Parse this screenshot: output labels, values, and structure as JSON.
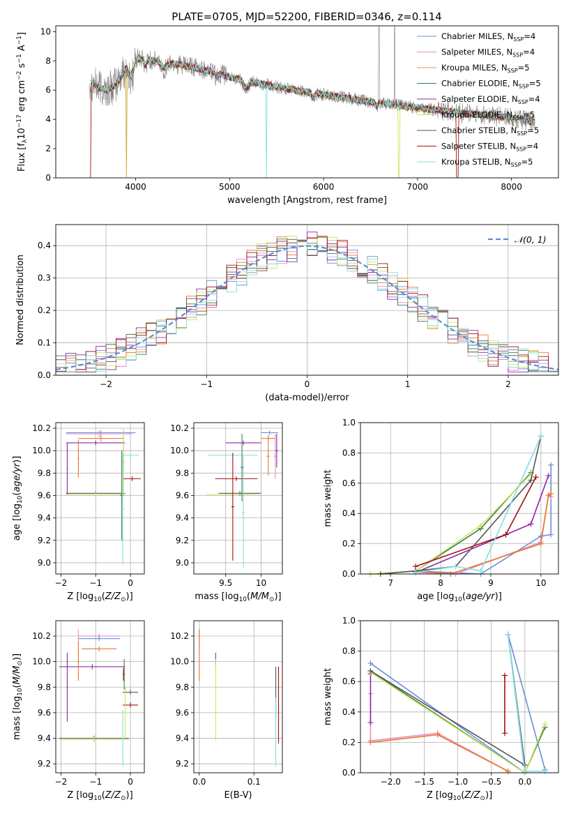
{
  "figure": {
    "title": "PLATE=0705, MJD=52200, FIBERID=0346, z=0.114"
  },
  "colors": {
    "Chabrier MILES": "#6a8fd6",
    "Salpeter MILES": "#e58fc0",
    "Kroupa MILES": "#c8a832",
    "Chabrier ELODIE": "#3f7a50",
    "Salpeter ELODIE": "#8c2aa6",
    "Kroupa ELODIE": "#c9e85a",
    "Chabrier STELIB": "#555555",
    "Salpeter STELIB": "#a01010",
    "Kroupa STELIB": "#86dede",
    "orange": "#e8762c",
    "observed": "#808080"
  },
  "chart_data": [
    {
      "type": "line",
      "id": "spectrum",
      "xlabel": "wavelength [Angstrom, rest frame]",
      "ylabel": "Flux [f_λ 10^-17 erg cm^-2 s^-1 A^-1]",
      "xlim": [
        3150,
        8500
      ],
      "ylim": [
        0,
        10.4
      ],
      "xticks": [
        4000,
        5000,
        6000,
        7000,
        8000
      ],
      "yticks": [
        0,
        2,
        4,
        6,
        8,
        10
      ],
      "grid": false,
      "legend_position": "upper-right",
      "legend": [
        {
          "name": "Chabrier MILES, N_SSP=4",
          "base": "Chabrier MILES, N",
          "sub": "SSP",
          "tail": "=4"
        },
        {
          "name": "Salpeter MILES, N_SSP=4",
          "base": "Salpeter MILES, N",
          "sub": "SSP",
          "tail": "=4"
        },
        {
          "name": "Kroupa MILES, N_SSP=5",
          "base": "Kroupa MILES, N",
          "sub": "SSP",
          "tail": "=5"
        },
        {
          "name": "Chabrier ELODIE, N_SSP=5",
          "base": "Chabrier ELODIE, N",
          "sub": "SSP",
          "tail": "=5"
        },
        {
          "name": "Salpeter ELODIE, N_SSP=4",
          "base": "Salpeter ELODIE, N",
          "sub": "SSP",
          "tail": "=4"
        },
        {
          "name": "Kroupa ELODIE, N_SSP=5",
          "base": "Kroupa ELODIE, N",
          "sub": "SSP",
          "tail": "=5"
        },
        {
          "name": "Chabrier STELIB, N_SSP=5",
          "base": "Chabrier STELIB, N",
          "sub": "SSP",
          "tail": "=5"
        },
        {
          "name": "Salpeter STELIB, N_SSP=4",
          "base": "Salpeter STELIB, N",
          "sub": "SSP",
          "tail": "=4"
        },
        {
          "name": "Kroupa STELIB, N_SSP=5",
          "base": "Kroupa STELIB, N",
          "sub": "SSP",
          "tail": "=5"
        }
      ],
      "continuum": [
        [
          3500,
          6.7
        ],
        [
          3600,
          6.2
        ],
        [
          3700,
          6.0
        ],
        [
          3800,
          6.4
        ],
        [
          3900,
          7.6
        ],
        [
          4000,
          8.2
        ],
        [
          4200,
          8.0
        ],
        [
          4500,
          7.7
        ],
        [
          4800,
          7.3
        ],
        [
          5000,
          6.9
        ],
        [
          5500,
          6.2
        ],
        [
          6000,
          5.7
        ],
        [
          6500,
          5.2
        ],
        [
          7000,
          4.8
        ],
        [
          7500,
          4.4
        ],
        [
          8000,
          4.1
        ],
        [
          8250,
          3.8
        ]
      ]
    },
    {
      "type": "histogram",
      "id": "residuals",
      "xlabel": "(data-model)/error",
      "ylabel": "Normed distribution",
      "xlim": [
        -2.5,
        2.5
      ],
      "ylim": [
        0,
        0.465
      ],
      "xticks": [
        -2,
        -1,
        0,
        1,
        2
      ],
      "yticks": [
        0.0,
        0.1,
        0.2,
        0.3,
        0.4
      ],
      "grid": true,
      "legend_position": "upper-right",
      "legend": [
        "𝒩(0, 1)"
      ],
      "bin_width": 0.1,
      "note": "step histograms for 9 fits plus Gaussian N(0,1) reference curve"
    },
    {
      "type": "errorbar",
      "id": "age_vs_Z",
      "xlabel": "Z [log10(Z/Z⊙)]",
      "ylabel": "age [log10(age/yr)]",
      "xlim": [
        -2.15,
        0.4
      ],
      "ylim": [
        8.9,
        10.25
      ],
      "xticks": [
        -2,
        -1,
        0
      ],
      "yticks": [
        9.0,
        9.2,
        9.4,
        9.6,
        9.8,
        10.0,
        10.2
      ],
      "grid": true,
      "points": [
        {
          "fit": "Chabrier MILES",
          "x": -0.85,
          "xerr": 1.0,
          "y": 10.16,
          "yerr": 0.02
        },
        {
          "fit": "Salpeter MILES",
          "x": -0.9,
          "xerr": 0.95,
          "y": 10.15,
          "yerr": 0.03
        },
        {
          "fit": "orange",
          "x": -0.85,
          "xerr": 0.65,
          "y": 10.11,
          "yerr": 0.03
        },
        {
          "fit": "Salpeter ELODIE",
          "x": -1.0,
          "xerr": 0.85,
          "y": 10.07,
          "yerr": 0.02
        },
        {
          "fit": "Chabrier STELIB",
          "x": -1.0,
          "xerr": 0.85,
          "y": 9.62,
          "yerr": 0.02
        },
        {
          "fit": "Kroupa ELODIE",
          "x": -1.0,
          "xerr": 0.85,
          "y": 9.61,
          "yerr": 0.02
        },
        {
          "fit": "Salpeter MILES",
          "x": -0.2,
          "xerr": 0.05,
          "y": 10.0,
          "yerr": 0.18
        },
        {
          "fit": "Kroupa ELODIE",
          "x": -0.2,
          "xerr": 0.05,
          "y": 9.9,
          "yerr": 0.3
        },
        {
          "fit": "Chabrier ELODIE",
          "x": -0.25,
          "xerr": 0.05,
          "y": 9.6,
          "yerr": 0.4
        },
        {
          "fit": "Kroupa STELIB",
          "x": -0.22,
          "xerr": 0.05,
          "y": 9.48,
          "yerr": 0.5
        },
        {
          "fit": "Kroupa STELIB",
          "x": 0.0,
          "xerr": 0.25,
          "y": 9.96,
          "yerr": 0.02
        },
        {
          "fit": "Salpeter STELIB",
          "x": 0.05,
          "xerr": 0.25,
          "y": 9.75,
          "yerr": 0.02
        },
        {
          "fit": "orange",
          "x": -1.5,
          "xerr": 0.02,
          "y": 9.93,
          "yerr": 0.17
        },
        {
          "fit": "Salpeter ELODIE",
          "x": -1.82,
          "xerr": 0.02,
          "y": 9.84,
          "yerr": 0.23
        }
      ]
    },
    {
      "type": "errorbar",
      "id": "age_vs_mass",
      "xlabel": "mass [log10(M/M⊙)]",
      "ylabel": "",
      "xlim": [
        9.05,
        10.3
      ],
      "ylim": [
        8.9,
        10.25
      ],
      "xticks": [
        9.5,
        10.0
      ],
      "yticks": [
        9.0,
        9.2,
        9.4,
        9.6,
        9.8,
        10.0,
        10.2
      ],
      "grid": true,
      "points": [
        {
          "fit": "Chabrier MILES",
          "x": 10.12,
          "xerr": 0.12,
          "y": 10.16,
          "yerr": 0.02
        },
        {
          "fit": "orange",
          "x": 10.1,
          "xerr": 0.1,
          "y": 10.11,
          "yerr": 0.03
        },
        {
          "fit": "Salpeter ELODIE",
          "x": 9.75,
          "xerr": 0.25,
          "y": 10.07,
          "yerr": 0.02
        },
        {
          "fit": "Kroupa STELIB",
          "x": 9.6,
          "xerr": 0.35,
          "y": 9.96,
          "yerr": 0.02
        },
        {
          "fit": "Salpeter STELIB",
          "x": 9.65,
          "xerr": 0.3,
          "y": 9.75,
          "yerr": 0.02
        },
        {
          "fit": "Chabrier STELIB",
          "x": 9.7,
          "xerr": 0.3,
          "y": 9.62,
          "yerr": 0.02
        },
        {
          "fit": "Kroupa ELODIE",
          "x": 9.6,
          "xerr": 0.38,
          "y": 9.61,
          "yerr": 0.02
        },
        {
          "fit": "Salpeter STELIB",
          "x": 9.6,
          "xerr": 0.02,
          "y": 9.5,
          "yerr": 0.48
        },
        {
          "fit": "Kroupa STELIB",
          "x": 9.75,
          "xerr": 0.02,
          "y": 9.45,
          "yerr": 0.5
        },
        {
          "fit": "Chabrier ELODIE",
          "x": 9.73,
          "xerr": 0.02,
          "y": 9.85,
          "yerr": 0.3
        },
        {
          "fit": "Salpeter MILES",
          "x": 10.2,
          "xerr": 0.02,
          "y": 9.95,
          "yerr": 0.2
        },
        {
          "fit": "Salpeter ELODIE",
          "x": 10.22,
          "xerr": 0.02,
          "y": 10.0,
          "yerr": 0.15
        },
        {
          "fit": "orange",
          "x": 10.1,
          "xerr": 0.02,
          "y": 9.95,
          "yerr": 0.17
        }
      ]
    },
    {
      "type": "line",
      "id": "massweight_vs_age",
      "xlabel": "age [log10(age/yr)]",
      "ylabel": "mass weight",
      "xlim": [
        6.4,
        10.35
      ],
      "ylim": [
        0,
        1.0
      ],
      "xticks": [
        7,
        8,
        9,
        10
      ],
      "yticks": [
        0.0,
        0.2,
        0.4,
        0.6,
        0.8,
        1.0
      ],
      "grid": true,
      "series": [
        {
          "fit": "Chabrier MILES",
          "x": [
            7.5,
            8.8,
            10.0,
            10.2,
            10.2
          ],
          "y": [
            0.02,
            0.0,
            0.25,
            0.26,
            0.72
          ]
        },
        {
          "fit": "Salpeter MILES",
          "x": [
            7.5,
            8.3,
            10.0,
            10.15,
            10.2
          ],
          "y": [
            0.01,
            0.0,
            0.21,
            0.52,
            0.51
          ]
        },
        {
          "fit": "orange",
          "x": [
            7.5,
            8.2,
            10.0,
            10.15,
            10.2
          ],
          "y": [
            0.02,
            0.0,
            0.2,
            0.52,
            0.53
          ]
        },
        {
          "fit": "Chabrier ELODIE",
          "x": [
            6.6,
            7.5,
            8.8,
            9.8
          ],
          "y": [
            0.0,
            0.02,
            0.3,
            0.67
          ]
        },
        {
          "fit": "Salpeter ELODIE",
          "x": [
            7.5,
            9.3,
            9.8,
            10.15
          ],
          "y": [
            0.01,
            0.26,
            0.33,
            0.65
          ]
        },
        {
          "fit": "Kroupa ELODIE",
          "x": [
            6.6,
            7.5,
            8.8,
            9.8
          ],
          "y": [
            0.0,
            0.02,
            0.32,
            0.66
          ]
        },
        {
          "fit": "Chabrier STELIB",
          "x": [
            6.8,
            7.5,
            8.3,
            9.8,
            10.0
          ],
          "y": [
            0.0,
            0.02,
            0.05,
            0.62,
            0.91
          ]
        },
        {
          "fit": "Salpeter STELIB",
          "x": [
            7.5,
            9.3,
            9.9
          ],
          "y": [
            0.05,
            0.26,
            0.64
          ]
        },
        {
          "fit": "Kroupa STELIB",
          "x": [
            7.5,
            8.3,
            8.8,
            10.0
          ],
          "y": [
            0.01,
            0.05,
            0.02,
            0.91
          ]
        }
      ]
    },
    {
      "type": "errorbar",
      "id": "mass_vs_Z",
      "xlabel": "Z [log10(Z/Z⊙)]",
      "ylabel": "mass [log10(M/M⊙)]",
      "xlim": [
        -2.15,
        0.4
      ],
      "ylim": [
        9.13,
        10.32
      ],
      "xticks": [
        -2,
        -1,
        0
      ],
      "yticks": [
        9.2,
        9.4,
        9.6,
        9.8,
        10.0,
        10.2
      ],
      "grid": true,
      "points": [
        {
          "fit": "Salpeter MILES",
          "x": -0.9,
          "xerr": 0.6,
          "y": 10.2,
          "yerr": 0.02
        },
        {
          "fit": "Chabrier MILES",
          "x": -0.9,
          "xerr": 0.6,
          "y": 10.18,
          "yerr": 0.02
        },
        {
          "fit": "orange",
          "x": -0.9,
          "xerr": 0.5,
          "y": 10.1,
          "yerr": 0.02
        },
        {
          "fit": "Salpeter ELODIE",
          "x": -1.1,
          "xerr": 0.95,
          "y": 9.96,
          "yerr": 0.02
        },
        {
          "fit": "Chabrier STELIB",
          "x": -1.05,
          "xerr": 1.0,
          "y": 9.4,
          "yerr": 0.02
        },
        {
          "fit": "Kroupa ELODIE",
          "x": -1.05,
          "xerr": 1.0,
          "y": 9.39,
          "yerr": 0.02
        },
        {
          "fit": "Chabrier STELIB",
          "x": 0.0,
          "xerr": 0.22,
          "y": 9.76,
          "yerr": 0.02
        },
        {
          "fit": "Salpeter STELIB",
          "x": 0.0,
          "xerr": 0.22,
          "y": 9.66,
          "yerr": 0.02
        },
        {
          "fit": "Salpeter MILES",
          "x": -1.5,
          "xerr": 0.02,
          "y": 10.15,
          "yerr": 0.1
        },
        {
          "fit": "orange",
          "x": -1.5,
          "xerr": 0.02,
          "y": 10.0,
          "yerr": 0.15
        },
        {
          "fit": "Salpeter ELODIE",
          "x": -1.82,
          "xerr": 0.02,
          "y": 9.8,
          "yerr": 0.27
        },
        {
          "fit": "Chabrier ELODIE",
          "x": -0.18,
          "xerr": 0.02,
          "y": 9.9,
          "yerr": 0.12
        },
        {
          "fit": "Salpeter STELIB",
          "x": -0.2,
          "xerr": 0.02,
          "y": 9.9,
          "yerr": 0.05
        },
        {
          "fit": "Kroupa ELODIE",
          "x": -0.15,
          "xerr": 0.02,
          "y": 9.6,
          "yerr": 0.2
        },
        {
          "fit": "Kroupa STELIB",
          "x": -0.22,
          "xerr": 0.02,
          "y": 9.4,
          "yerr": 0.22
        }
      ]
    },
    {
      "type": "errorbar",
      "id": "mass_vs_EBV",
      "xlabel": "E(B-V)",
      "ylabel": "",
      "xlim": [
        -0.01,
        0.152
      ],
      "ylim": [
        9.13,
        10.32
      ],
      "xticks": [
        0.0,
        0.1
      ],
      "yticks": [
        9.2,
        9.4,
        9.6,
        9.8,
        10.0,
        10.2
      ],
      "grid": true,
      "points": [
        {
          "fit": "Salpeter MILES",
          "x": 0.0,
          "xerr": 0.0,
          "y": 10.18,
          "yerr": 0.08
        },
        {
          "fit": "orange",
          "x": 0.0,
          "xerr": 0.0,
          "y": 10.05,
          "yerr": 0.2
        },
        {
          "fit": "Salpeter ELODIE",
          "x": 0.03,
          "xerr": 0.0,
          "y": 10.02,
          "yerr": 0.05
        },
        {
          "fit": "Kroupa ELODIE",
          "x": 0.03,
          "xerr": 0.0,
          "y": 9.7,
          "yerr": 0.32
        },
        {
          "fit": "Chabrier STELIB",
          "x": 0.14,
          "xerr": 0.0,
          "y": 9.76,
          "yerr": 0.2
        },
        {
          "fit": "Salpeter STELIB",
          "x": 0.145,
          "xerr": 0.0,
          "y": 9.66,
          "yerr": 0.3
        },
        {
          "fit": "Kroupa STELIB",
          "x": 0.14,
          "xerr": 0.0,
          "y": 9.45,
          "yerr": 0.27
        }
      ]
    },
    {
      "type": "line",
      "id": "massweight_vs_Z",
      "xlabel": "Z [log10(Z/Z⊙)]",
      "ylabel": "mass weight",
      "xlim": [
        -2.45,
        0.5
      ],
      "ylim": [
        0,
        1.0
      ],
      "xticks": [
        -2.0,
        -1.5,
        -1.0,
        -0.5,
        0.0
      ],
      "yticks": [
        0.0,
        0.2,
        0.4,
        0.6,
        0.8,
        1.0
      ],
      "grid": true,
      "series": [
        {
          "fit": "Chabrier MILES",
          "x": [
            -2.3,
            0.0,
            -0.25,
            0.3
          ],
          "y": [
            0.72,
            0.0,
            0.91,
            0.02
          ]
        },
        {
          "fit": "Salpeter MILES",
          "x": [
            -2.3,
            -2.3,
            -1.3,
            -0.25
          ],
          "y": [
            0.52,
            0.21,
            0.26,
            0.01
          ]
        },
        {
          "fit": "orange",
          "x": [
            -2.3,
            -1.3,
            -0.25
          ],
          "y": [
            0.2,
            0.25,
            0.01
          ]
        },
        {
          "fit": "Chabrier ELODIE",
          "x": [
            -2.3,
            0.0,
            0.3
          ],
          "y": [
            0.67,
            0.0,
            0.3
          ]
        },
        {
          "fit": "Salpeter ELODIE",
          "x": [
            -2.3,
            -2.3
          ],
          "y": [
            0.65,
            0.33
          ]
        },
        {
          "fit": "Kroupa ELODIE",
          "x": [
            -2.3,
            0.0,
            0.3
          ],
          "y": [
            0.66,
            0.0,
            0.32
          ]
        },
        {
          "fit": "Chabrier STELIB",
          "x": [
            -2.3,
            0.0,
            -0.25
          ],
          "y": [
            0.67,
            0.05,
            0.91
          ]
        },
        {
          "fit": "Salpeter STELIB",
          "x": [
            -0.3,
            -0.3
          ],
          "y": [
            0.64,
            0.26
          ]
        },
        {
          "fit": "Kroupa STELIB",
          "x": [
            -0.25,
            0.0,
            0.3
          ],
          "y": [
            0.91,
            0.01,
            0.01
          ]
        }
      ]
    }
  ]
}
